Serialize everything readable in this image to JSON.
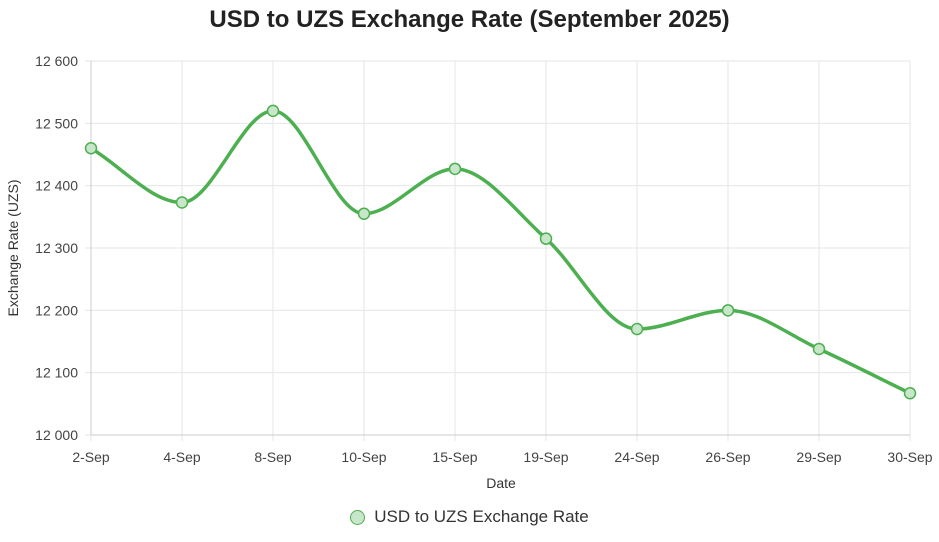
{
  "chart_data": {
    "type": "line",
    "title": "USD to UZS Exchange Rate (September 2025)",
    "xlabel": "Date",
    "ylabel": "Exchange Rate (UZS)",
    "categories": [
      "2-Sep",
      "4-Sep",
      "8-Sep",
      "10-Sep",
      "15-Sep",
      "19-Sep",
      "24-Sep",
      "26-Sep",
      "29-Sep",
      "30-Sep"
    ],
    "series": [
      {
        "name": "USD to UZS Exchange Rate",
        "values": [
          12460,
          12373,
          12520,
          12355,
          12427,
          12315,
          12170,
          12200,
          12138,
          12067
        ]
      }
    ],
    "ylim": [
      12000,
      12600
    ],
    "yticks": [
      "12 000",
      "12 100",
      "12 200",
      "12 300",
      "12 400",
      "12 500",
      "12 600"
    ],
    "grid": true,
    "legend_position": "bottom",
    "colors": {
      "line": "#4caf50",
      "marker_fill": "#c8e6c9",
      "grid": "#e6e6e6"
    }
  }
}
